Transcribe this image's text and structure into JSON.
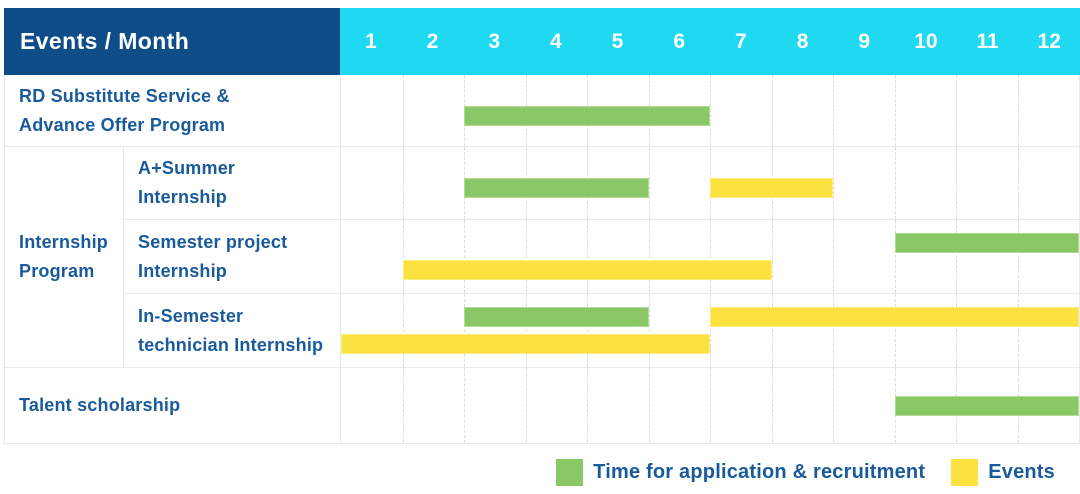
{
  "colors": {
    "recruitment": "#8AC865",
    "event": "#FBE23E",
    "header_bg": "#0E4D87",
    "months_bg": "#1ED9EF",
    "label_text": "#185A9C"
  },
  "header": {
    "title": "Events / Month"
  },
  "months": [
    "1",
    "2",
    "3",
    "4",
    "5",
    "6",
    "7",
    "8",
    "9",
    "10",
    "11",
    "12"
  ],
  "labels": {
    "rd": [
      "RD Substitute Service &",
      "Advance Offer Program"
    ],
    "group": [
      "Internship",
      "Program"
    ],
    "a_summer": [
      "A+Summer",
      "Internship"
    ],
    "semester_project": [
      "Semester project",
      "Internship"
    ],
    "in_semester": [
      "In-Semester",
      "technician Internship"
    ],
    "talent": [
      "Talent scholarship"
    ]
  },
  "legend": {
    "recruitment_label": "Time for application & recruitment",
    "events_label": "Events"
  },
  "chart_data": {
    "type": "table",
    "subtype": "gantt",
    "x_categories": [
      1,
      2,
      3,
      4,
      5,
      6,
      7,
      8,
      9,
      10,
      11,
      12
    ],
    "x_axis_label": "Month",
    "corner_header": "Events / Month",
    "legend": [
      "Time for application & recruitment",
      "Events"
    ],
    "legend_position": "bottom-right",
    "rows": [
      {
        "group": null,
        "label": "RD Substitute Service & Advance Offer Program",
        "bars": [
          {
            "series": "Time for application & recruitment",
            "kind": "recruitment",
            "start_month": 3,
            "end_month": 6
          }
        ]
      },
      {
        "group": "Internship Program",
        "label": "A+Summer Internship",
        "bars": [
          {
            "series": "Time for application & recruitment",
            "kind": "recruitment",
            "start_month": 3,
            "end_month": 5
          },
          {
            "series": "Events",
            "kind": "event",
            "start_month": 7,
            "end_month": 8
          }
        ]
      },
      {
        "group": "Internship Program",
        "label": "Semester project Internship",
        "bars": [
          {
            "series": "Time for application & recruitment",
            "kind": "recruitment",
            "start_month": 10,
            "end_month": 12
          },
          {
            "series": "Events",
            "kind": "event",
            "start_month": 2,
            "end_month": 7
          }
        ]
      },
      {
        "group": "Internship Program",
        "label": "In-Semester technician Internship",
        "bars": [
          {
            "series": "Time for application & recruitment",
            "kind": "recruitment",
            "start_month": 3,
            "end_month": 5
          },
          {
            "series": "Events",
            "kind": "event",
            "start_month": 7,
            "end_month": 12
          },
          {
            "series": "Events",
            "kind": "event",
            "start_month": 1,
            "end_month": 6
          }
        ]
      },
      {
        "group": null,
        "label": "Talent scholarship",
        "bars": [
          {
            "series": "Time for application & recruitment",
            "kind": "recruitment",
            "start_month": 10,
            "end_month": 12
          }
        ]
      }
    ]
  }
}
